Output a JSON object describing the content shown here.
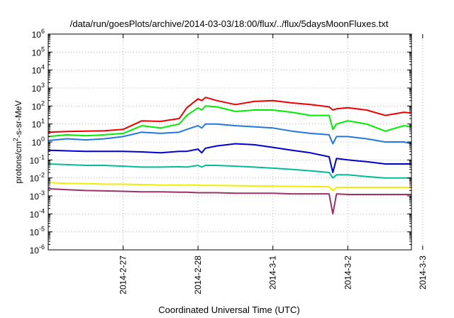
{
  "chart_data": {
    "type": "line",
    "title": "/data/run/goesPlots/archive/2014-03-03/18:00/flux/../flux/5daysMoonFluxes.txt",
    "xlabel": "Coordinated Universal Time (UTC)",
    "ylabel_base": "protons/cm",
    "ylabel_sup": "2",
    "ylabel_rest": "-s-sr-MeV",
    "yscale": "log",
    "ylim_exp": [
      -6,
      6
    ],
    "y_ticks": [
      {
        "base": "10",
        "exp": "-6"
      },
      {
        "base": "10",
        "exp": "-5"
      },
      {
        "base": "10",
        "exp": "-4"
      },
      {
        "base": "10",
        "exp": "-3"
      },
      {
        "base": "10",
        "exp": "-2"
      },
      {
        "base": "10",
        "exp": "-1"
      },
      {
        "base": "10",
        "exp": "0"
      },
      {
        "base": "10",
        "exp": "1"
      },
      {
        "base": "10",
        "exp": "2"
      },
      {
        "base": "10",
        "exp": "3"
      },
      {
        "base": "10",
        "exp": "4"
      },
      {
        "base": "10",
        "exp": "5"
      },
      {
        "base": "10",
        "exp": "6"
      }
    ],
    "xlim_days": [
      0,
      4.85
    ],
    "x_ticks": [
      {
        "label": "2014-2-27",
        "day": 1
      },
      {
        "label": "2014-2-28",
        "day": 2
      },
      {
        "label": "2014-3-1",
        "day": 3
      },
      {
        "label": "2014-3-2",
        "day": 4
      },
      {
        "label": "2014-3-3",
        "day": 5
      }
    ],
    "grid": true,
    "x": [
      0.0,
      0.25,
      0.5,
      0.75,
      1.0,
      1.25,
      1.5,
      1.75,
      1.85,
      2.0,
      2.05,
      2.1,
      2.25,
      2.5,
      2.75,
      3.0,
      3.25,
      3.5,
      3.75,
      3.8,
      3.85,
      4.0,
      4.25,
      4.5,
      4.75,
      4.85
    ],
    "series": [
      {
        "color": "#ee0000",
        "values": [
          3.5,
          3.8,
          4.0,
          4.2,
          5.0,
          15,
          14,
          20,
          80,
          250,
          200,
          300,
          200,
          120,
          180,
          200,
          150,
          120,
          90,
          60,
          70,
          80,
          60,
          30,
          45,
          40
        ]
      },
      {
        "color": "#00ee00",
        "values": [
          2.0,
          2.5,
          2.2,
          2.5,
          3.0,
          8,
          6,
          10,
          30,
          80,
          60,
          100,
          90,
          50,
          60,
          60,
          45,
          30,
          30,
          5,
          10,
          15,
          10,
          4,
          8,
          7
        ]
      },
      {
        "color": "#2277dd",
        "values": [
          1.2,
          1.5,
          1.3,
          1.5,
          2.0,
          3.5,
          3.0,
          3.5,
          5.0,
          8,
          6,
          10,
          10,
          8,
          7,
          6,
          4,
          3,
          2.5,
          0.8,
          2.0,
          2.0,
          1.5,
          1.0,
          1.0,
          0.8
        ]
      },
      {
        "color": "#0000cc",
        "values": [
          0.35,
          0.32,
          0.3,
          0.3,
          0.3,
          0.28,
          0.25,
          0.3,
          0.3,
          0.4,
          0.25,
          0.45,
          0.6,
          0.8,
          0.7,
          0.5,
          0.35,
          0.25,
          0.15,
          0.02,
          0.12,
          0.1,
          0.08,
          0.06,
          0.06,
          0.06
        ]
      },
      {
        "color": "#00bb99",
        "values": [
          0.06,
          0.055,
          0.05,
          0.05,
          0.045,
          0.04,
          0.04,
          0.042,
          0.04,
          0.05,
          0.04,
          0.05,
          0.05,
          0.045,
          0.04,
          0.035,
          0.03,
          0.025,
          0.02,
          0.01,
          0.015,
          0.015,
          0.012,
          0.01,
          0.01,
          0.01
        ]
      },
      {
        "color": "#eeee00",
        "values": [
          0.0055,
          0.005,
          0.0048,
          0.0045,
          0.0045,
          0.0043,
          0.004,
          0.004,
          0.004,
          0.004,
          0.0038,
          0.0038,
          0.0038,
          0.0037,
          0.0036,
          0.0035,
          0.0034,
          0.0033,
          0.0032,
          0.002,
          0.003,
          0.003,
          0.003,
          0.003,
          0.003,
          0.003
        ]
      },
      {
        "color": "#993366",
        "values": [
          0.0025,
          0.0022,
          0.002,
          0.0019,
          0.0018,
          0.0017,
          0.0017,
          0.0016,
          0.0016,
          0.0015,
          0.0015,
          0.0015,
          0.0015,
          0.0014,
          0.0014,
          0.0014,
          0.0013,
          0.0013,
          0.0013,
          0.0001,
          0.0013,
          0.0012,
          0.0012,
          0.0012,
          0.0012,
          0.0012
        ]
      }
    ]
  }
}
